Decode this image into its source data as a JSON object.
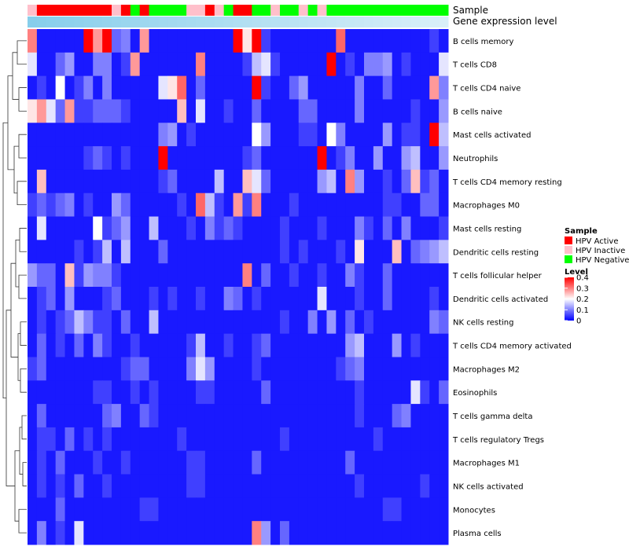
{
  "chart_data": {
    "type": "heatmap",
    "annotation_labels": {
      "sample": "Sample",
      "gene_expression": "Gene expression level"
    },
    "sample_groups": {
      "active": "HPV Active",
      "inactive": "HPV Inactive",
      "negative": "HPV Negative"
    },
    "sample_colors": {
      "active": "#FF0000",
      "inactive": "#FFC0CB",
      "negative": "#00FF00"
    },
    "samples": [
      "inactive",
      "active",
      "active",
      "active",
      "active",
      "active",
      "active",
      "active",
      "active",
      "inactive",
      "active",
      "negative",
      "active",
      "negative",
      "negative",
      "negative",
      "negative",
      "inactive",
      "inactive",
      "active",
      "inactive",
      "negative",
      "active",
      "active",
      "negative",
      "negative",
      "inactive",
      "negative",
      "negative",
      "inactive",
      "negative",
      "inactive",
      "negative",
      "negative",
      "negative",
      "negative",
      "negative",
      "negative",
      "negative",
      "negative",
      "negative",
      "negative",
      "negative",
      "negative",
      "negative"
    ],
    "gene_expression_gradient": [
      "#87CEEB",
      "#D9EFF8"
    ],
    "rows": [
      "B cells memory",
      "T cells CD8",
      "T cells CD4 naive",
      "B cells naive",
      "Mast cells activated",
      "Neutrophils",
      "T cells CD4 memory resting",
      "Macrophages M0",
      "Mast cells resting",
      "Dendritic cells resting",
      "T cells follicular helper",
      "Dendritic cells activated",
      "NK cells resting",
      "T cells CD4 memory activated",
      "Macrophages M2",
      "Eosinophils",
      "T cells gamma delta",
      "T cells regulatory  Tregs",
      "Macrophages M1",
      "NK cells activated",
      "Monocytes",
      "Plasma cells"
    ],
    "values": [
      [
        0.3,
        0.02,
        0.02,
        0.02,
        0.02,
        0.02,
        0.4,
        0.28,
        0.4,
        0.08,
        0.1,
        0.02,
        0.28,
        0.02,
        0.02,
        0.02,
        0.02,
        0.02,
        0.02,
        0.02,
        0.02,
        0.02,
        0.4,
        0.22,
        0.4,
        0.05,
        0.02,
        0.02,
        0.02,
        0.02,
        0.02,
        0.02,
        0.02,
        0.32,
        0.02,
        0.02,
        0.02,
        0.02,
        0.02,
        0.02,
        0.02,
        0.02,
        0.02,
        0.05,
        0.02
      ],
      [
        0.18,
        0.02,
        0.02,
        0.08,
        0.12,
        0.02,
        0.02,
        0.1,
        0.1,
        0.02,
        0.05,
        0.28,
        0.02,
        0.02,
        0.02,
        0.02,
        0.02,
        0.02,
        0.3,
        0.02,
        0.02,
        0.02,
        0.02,
        0.05,
        0.15,
        0.18,
        0.05,
        0.02,
        0.02,
        0.02,
        0.02,
        0.02,
        0.4,
        0.02,
        0.05,
        0.02,
        0.1,
        0.1,
        0.12,
        0.02,
        0.05,
        0.02,
        0.02,
        0.02,
        0.18
      ],
      [
        0.02,
        0.05,
        0.02,
        0.2,
        0.02,
        0.05,
        0.1,
        0.02,
        0.1,
        0.02,
        0.02,
        0.02,
        0.02,
        0.02,
        0.18,
        0.22,
        0.32,
        0.02,
        0.08,
        0.02,
        0.02,
        0.02,
        0.02,
        0.02,
        0.4,
        0.05,
        0.02,
        0.02,
        0.08,
        0.12,
        0.02,
        0.02,
        0.02,
        0.02,
        0.02,
        0.1,
        0.02,
        0.02,
        0.08,
        0.02,
        0.02,
        0.02,
        0.02,
        0.28,
        0.1
      ],
      [
        0.22,
        0.28,
        0.18,
        0.08,
        0.28,
        0.05,
        0.05,
        0.08,
        0.08,
        0.08,
        0.05,
        0.02,
        0.02,
        0.02,
        0.02,
        0.02,
        0.25,
        0.02,
        0.18,
        0.02,
        0.02,
        0.05,
        0.02,
        0.02,
        0.08,
        0.02,
        0.02,
        0.02,
        0.02,
        0.08,
        0.08,
        0.02,
        0.02,
        0.02,
        0.02,
        0.1,
        0.02,
        0.02,
        0.02,
        0.02,
        0.02,
        0.05,
        0.02,
        0.02,
        0.12
      ],
      [
        0.02,
        0.02,
        0.02,
        0.02,
        0.02,
        0.02,
        0.02,
        0.02,
        0.02,
        0.02,
        0.02,
        0.02,
        0.02,
        0.02,
        0.1,
        0.12,
        0.02,
        0.05,
        0.02,
        0.02,
        0.02,
        0.02,
        0.02,
        0.02,
        0.2,
        0.12,
        0.02,
        0.02,
        0.02,
        0.05,
        0.05,
        0.02,
        0.2,
        0.1,
        0.02,
        0.02,
        0.02,
        0.02,
        0.12,
        0.02,
        0.05,
        0.05,
        0.02,
        0.4,
        0.15
      ],
      [
        0.02,
        0.02,
        0.02,
        0.02,
        0.02,
        0.02,
        0.05,
        0.08,
        0.05,
        0.02,
        0.05,
        0.02,
        0.02,
        0.02,
        0.4,
        0.02,
        0.02,
        0.02,
        0.02,
        0.02,
        0.02,
        0.02,
        0.02,
        0.05,
        0.08,
        0.02,
        0.02,
        0.02,
        0.02,
        0.02,
        0.02,
        0.4,
        0.02,
        0.05,
        0.1,
        0.02,
        0.02,
        0.12,
        0.02,
        0.02,
        0.12,
        0.15,
        0.02,
        0.02,
        0.12
      ],
      [
        0.02,
        0.25,
        0.02,
        0.02,
        0.02,
        0.02,
        0.02,
        0.02,
        0.02,
        0.02,
        0.02,
        0.02,
        0.02,
        0.02,
        0.05,
        0.08,
        0.02,
        0.02,
        0.02,
        0.02,
        0.15,
        0.02,
        0.02,
        0.25,
        0.18,
        0.08,
        0.02,
        0.02,
        0.02,
        0.02,
        0.02,
        0.12,
        0.15,
        0.02,
        0.3,
        0.12,
        0.02,
        0.02,
        0.05,
        0.02,
        0.08,
        0.25,
        0.05,
        0.08,
        0.02
      ],
      [
        0.05,
        0.08,
        0.05,
        0.08,
        0.1,
        0.02,
        0.05,
        0.02,
        0.02,
        0.12,
        0.08,
        0.02,
        0.02,
        0.02,
        0.02,
        0.02,
        0.05,
        0.02,
        0.32,
        0.15,
        0.05,
        0.02,
        0.28,
        0.05,
        0.3,
        0.02,
        0.02,
        0.02,
        0.05,
        0.02,
        0.02,
        0.02,
        0.02,
        0.02,
        0.02,
        0.02,
        0.02,
        0.02,
        0.05,
        0.05,
        0.02,
        0.02,
        0.08,
        0.08,
        0.02
      ],
      [
        0.02,
        0.18,
        0.02,
        0.02,
        0.02,
        0.02,
        0.02,
        0.2,
        0.05,
        0.08,
        0.12,
        0.02,
        0.02,
        0.15,
        0.02,
        0.02,
        0.02,
        0.05,
        0.02,
        0.1,
        0.05,
        0.08,
        0.05,
        0.02,
        0.02,
        0.02,
        0.02,
        0.05,
        0.02,
        0.02,
        0.02,
        0.05,
        0.02,
        0.02,
        0.02,
        0.1,
        0.05,
        0.02,
        0.08,
        0.02,
        0.1,
        0.02,
        0.02,
        0.02,
        0.05
      ],
      [
        0.02,
        0.02,
        0.02,
        0.02,
        0.02,
        0.05,
        0.02,
        0.05,
        0.15,
        0.02,
        0.15,
        0.02,
        0.02,
        0.02,
        0.08,
        0.02,
        0.02,
        0.02,
        0.02,
        0.02,
        0.02,
        0.02,
        0.02,
        0.02,
        0.02,
        0.02,
        0.02,
        0.05,
        0.02,
        0.05,
        0.02,
        0.02,
        0.02,
        0.05,
        0.02,
        0.22,
        0.02,
        0.02,
        0.02,
        0.25,
        0.02,
        0.08,
        0.1,
        0.12,
        0.15
      ],
      [
        0.12,
        0.08,
        0.08,
        0.02,
        0.25,
        0.05,
        0.12,
        0.1,
        0.1,
        0.05,
        0.02,
        0.02,
        0.02,
        0.02,
        0.02,
        0.02,
        0.02,
        0.02,
        0.02,
        0.02,
        0.02,
        0.02,
        0.02,
        0.3,
        0.02,
        0.08,
        0.02,
        0.02,
        0.05,
        0.02,
        0.02,
        0.05,
        0.02,
        0.02,
        0.1,
        0.05,
        0.02,
        0.02,
        0.08,
        0.02,
        0.02,
        0.02,
        0.02,
        0.02,
        0.02
      ],
      [
        0.02,
        0.05,
        0.08,
        0.02,
        0.12,
        0.02,
        0.02,
        0.02,
        0.05,
        0.08,
        0.02,
        0.02,
        0.02,
        0.05,
        0.02,
        0.05,
        0.02,
        0.02,
        0.05,
        0.02,
        0.02,
        0.1,
        0.08,
        0.02,
        0.05,
        0.02,
        0.02,
        0.02,
        0.02,
        0.02,
        0.02,
        0.18,
        0.02,
        0.02,
        0.02,
        0.05,
        0.02,
        0.02,
        0.08,
        0.02,
        0.02,
        0.02,
        0.02,
        0.05,
        0.02
      ],
      [
        0.02,
        0.05,
        0.02,
        0.05,
        0.08,
        0.15,
        0.1,
        0.05,
        0.05,
        0.02,
        0.08,
        0.02,
        0.02,
        0.15,
        0.02,
        0.02,
        0.02,
        0.02,
        0.02,
        0.02,
        0.02,
        0.02,
        0.02,
        0.02,
        0.02,
        0.02,
        0.02,
        0.05,
        0.02,
        0.02,
        0.1,
        0.02,
        0.12,
        0.02,
        0.08,
        0.02,
        0.05,
        0.02,
        0.02,
        0.02,
        0.02,
        0.02,
        0.02,
        0.1,
        0.08
      ],
      [
        0.02,
        0.08,
        0.02,
        0.05,
        0.02,
        0.08,
        0.02,
        0.1,
        0.05,
        0.02,
        0.02,
        0.05,
        0.02,
        0.02,
        0.02,
        0.02,
        0.02,
        0.05,
        0.15,
        0.02,
        0.02,
        0.05,
        0.02,
        0.02,
        0.05,
        0.08,
        0.02,
        0.02,
        0.02,
        0.02,
        0.02,
        0.02,
        0.02,
        0.02,
        0.12,
        0.15,
        0.02,
        0.02,
        0.02,
        0.12,
        0.02,
        0.05,
        0.02,
        0.02,
        0.02
      ],
      [
        0.05,
        0.08,
        0.02,
        0.02,
        0.02,
        0.02,
        0.02,
        0.02,
        0.02,
        0.02,
        0.05,
        0.08,
        0.08,
        0.02,
        0.02,
        0.02,
        0.02,
        0.1,
        0.18,
        0.12,
        0.02,
        0.02,
        0.02,
        0.02,
        0.05,
        0.02,
        0.02,
        0.02,
        0.02,
        0.02,
        0.02,
        0.02,
        0.02,
        0.05,
        0.08,
        0.1,
        0.02,
        0.02,
        0.02,
        0.02,
        0.02,
        0.02,
        0.02,
        0.02,
        0.02
      ],
      [
        0.02,
        0.02,
        0.02,
        0.02,
        0.02,
        0.02,
        0.02,
        0.05,
        0.05,
        0.02,
        0.02,
        0.05,
        0.02,
        0.05,
        0.02,
        0.02,
        0.02,
        0.02,
        0.05,
        0.05,
        0.02,
        0.02,
        0.02,
        0.02,
        0.02,
        0.08,
        0.02,
        0.02,
        0.02,
        0.02,
        0.02,
        0.02,
        0.02,
        0.02,
        0.02,
        0.05,
        0.02,
        0.02,
        0.02,
        0.02,
        0.02,
        0.18,
        0.05,
        0.02,
        0.08
      ],
      [
        0.02,
        0.08,
        0.02,
        0.02,
        0.02,
        0.02,
        0.02,
        0.02,
        0.08,
        0.1,
        0.02,
        0.02,
        0.08,
        0.05,
        0.02,
        0.02,
        0.02,
        0.02,
        0.02,
        0.02,
        0.02,
        0.02,
        0.02,
        0.02,
        0.02,
        0.02,
        0.02,
        0.02,
        0.02,
        0.02,
        0.02,
        0.02,
        0.02,
        0.02,
        0.02,
        0.05,
        0.02,
        0.02,
        0.02,
        0.08,
        0.1,
        0.02,
        0.02,
        0.02,
        0.02
      ],
      [
        0.02,
        0.05,
        0.05,
        0.02,
        0.08,
        0.02,
        0.05,
        0.02,
        0.05,
        0.02,
        0.02,
        0.02,
        0.02,
        0.02,
        0.02,
        0.02,
        0.05,
        0.02,
        0.02,
        0.02,
        0.02,
        0.02,
        0.02,
        0.02,
        0.02,
        0.02,
        0.02,
        0.05,
        0.02,
        0.02,
        0.02,
        0.02,
        0.02,
        0.02,
        0.02,
        0.02,
        0.02,
        0.05,
        0.02,
        0.02,
        0.02,
        0.02,
        0.02,
        0.02,
        0.02
      ],
      [
        0.02,
        0.05,
        0.02,
        0.08,
        0.02,
        0.02,
        0.02,
        0.05,
        0.02,
        0.02,
        0.05,
        0.02,
        0.02,
        0.02,
        0.02,
        0.02,
        0.02,
        0.05,
        0.05,
        0.02,
        0.02,
        0.02,
        0.02,
        0.02,
        0.08,
        0.02,
        0.02,
        0.02,
        0.02,
        0.02,
        0.02,
        0.02,
        0.02,
        0.02,
        0.08,
        0.02,
        0.02,
        0.02,
        0.02,
        0.02,
        0.02,
        0.02,
        0.02,
        0.02,
        0.02
      ],
      [
        0.02,
        0.05,
        0.02,
        0.05,
        0.02,
        0.08,
        0.02,
        0.02,
        0.05,
        0.02,
        0.02,
        0.02,
        0.02,
        0.02,
        0.02,
        0.02,
        0.02,
        0.05,
        0.05,
        0.02,
        0.02,
        0.02,
        0.02,
        0.02,
        0.02,
        0.02,
        0.02,
        0.02,
        0.02,
        0.02,
        0.02,
        0.02,
        0.02,
        0.02,
        0.02,
        0.05,
        0.02,
        0.02,
        0.02,
        0.02,
        0.02,
        0.02,
        0.05,
        0.02,
        0.02
      ],
      [
        0.02,
        0.02,
        0.02,
        0.08,
        0.02,
        0.02,
        0.02,
        0.02,
        0.02,
        0.02,
        0.02,
        0.02,
        0.05,
        0.05,
        0.02,
        0.02,
        0.02,
        0.02,
        0.02,
        0.02,
        0.02,
        0.02,
        0.02,
        0.02,
        0.02,
        0.02,
        0.02,
        0.02,
        0.02,
        0.02,
        0.02,
        0.02,
        0.02,
        0.02,
        0.02,
        0.02,
        0.02,
        0.02,
        0.05,
        0.05,
        0.02,
        0.02,
        0.02,
        0.02,
        0.02
      ],
      [
        0.02,
        0.1,
        0.02,
        0.05,
        0.02,
        0.18,
        0.02,
        0.02,
        0.02,
        0.02,
        0.02,
        0.02,
        0.02,
        0.02,
        0.02,
        0.02,
        0.02,
        0.02,
        0.02,
        0.02,
        0.02,
        0.02,
        0.02,
        0.02,
        0.3,
        0.12,
        0.02,
        0.08,
        0.02,
        0.02,
        0.02,
        0.02,
        0.02,
        0.02,
        0.02,
        0.02,
        0.02,
        0.02,
        0.02,
        0.02,
        0.02,
        0.02,
        0.02,
        0.02,
        0.02
      ]
    ],
    "color_scale": {
      "title": "Level",
      "min": 0,
      "max": 0.4,
      "ticks": [
        0.4,
        0.3,
        0.2,
        0.1,
        0
      ],
      "colors": [
        "#0000FF",
        "#FFFFFF",
        "#FF0000"
      ]
    },
    "dendrogram": "rows"
  }
}
